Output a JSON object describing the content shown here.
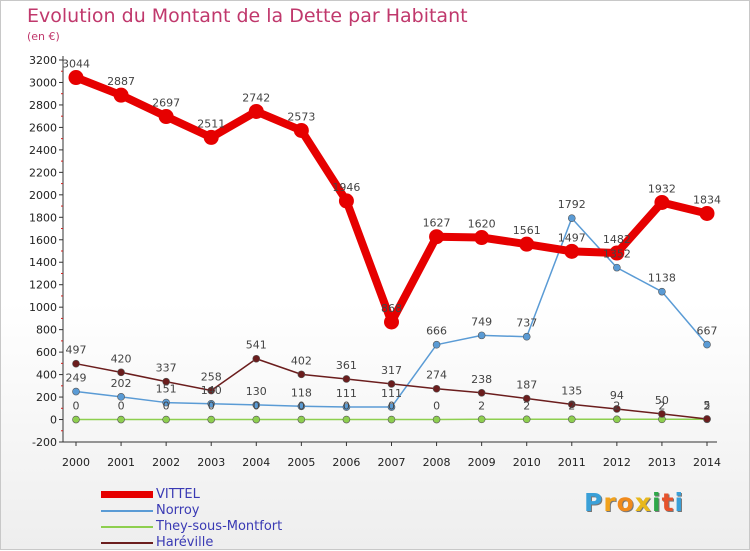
{
  "title": "Evolution du Montant de la Dette par Habitant",
  "subtitle": "(en €)",
  "logo": {
    "letters": [
      "P",
      "r",
      "o",
      "x",
      "i",
      "t",
      "i"
    ],
    "colors": [
      "#3aa0d8",
      "#f2a21c",
      "#f08a1c",
      "#e8b81c",
      "#2ea84a",
      "#e6532c",
      "#3aa0d8"
    ]
  },
  "chart_data": {
    "type": "line",
    "title": "Evolution du Montant de la Dette par Habitant",
    "ylabel": "(en €)",
    "xlabel": "",
    "x": [
      "2000",
      "2001",
      "2002",
      "2003",
      "2004",
      "2005",
      "2006",
      "2007",
      "2008",
      "2009",
      "2010",
      "2011",
      "2012",
      "2013",
      "2014"
    ],
    "ylim": [
      -200,
      3200
    ],
    "yticks": [
      "-200",
      "0",
      "200",
      "400",
      "600",
      "800",
      "1000",
      "1200",
      "1400",
      "1600",
      "1800",
      "2000",
      "2200",
      "2400",
      "2600",
      "2800",
      "3000",
      "3200"
    ],
    "grid": false,
    "legend_position": "bottom-left",
    "series": [
      {
        "name": "VITTEL",
        "color": "#e60000",
        "values": [
          3044,
          2887,
          2697,
          2511,
          2742,
          2573,
          1946,
          868,
          1627,
          1620,
          1561,
          1497,
          1482,
          1932,
          1834
        ],
        "labels": [
          "3044",
          "2887",
          "2697",
          "2511",
          "2742",
          "2573",
          "1946",
          "868",
          "1627",
          "1620",
          "1561",
          "1497",
          "1482",
          "1932",
          "1834"
        ]
      },
      {
        "name": "Norroy",
        "color": "#5a9bd5",
        "values": [
          249,
          202,
          151,
          140,
          130,
          118,
          111,
          111,
          666,
          749,
          737,
          1792,
          1352,
          1138,
          667
        ],
        "labels": [
          "249",
          "202",
          "151",
          "140",
          "130",
          "118",
          "111",
          "111",
          "666",
          "749",
          "737",
          "1792",
          "1352",
          "1138",
          "667"
        ]
      },
      {
        "name": "They-sous-Montfort",
        "color": "#8ecf4f",
        "values": [
          0,
          0,
          0,
          0,
          0,
          0,
          0,
          0,
          0,
          2,
          2,
          2,
          2,
          2,
          2
        ],
        "labels": [
          "0",
          "0",
          "0",
          "0",
          "0",
          "0",
          "0",
          "0",
          "0",
          "2",
          "2",
          "2",
          "2",
          "2",
          "2"
        ]
      },
      {
        "name": "Haréville",
        "color": "#6b1d1d",
        "values": [
          497,
          420,
          337,
          258,
          541,
          402,
          361,
          317,
          274,
          238,
          187,
          135,
          94,
          50,
          5
        ],
        "labels": [
          "497",
          "420",
          "337",
          "258",
          "541",
          "402",
          "361",
          "317",
          "274",
          "238",
          "187",
          "135",
          "94",
          "50",
          "5"
        ]
      }
    ]
  }
}
